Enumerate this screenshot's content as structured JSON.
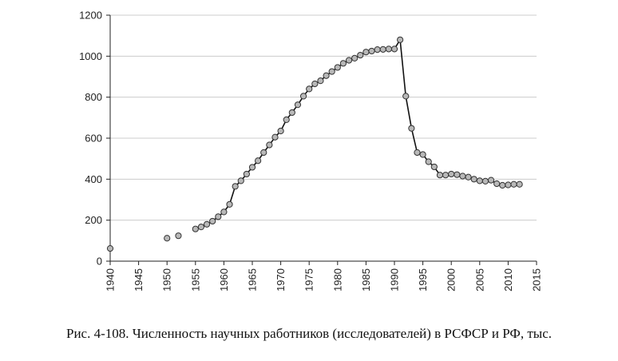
{
  "caption": "Рис. 4-108. Численность научных работников (исследователей) в РСФСР и РФ, тыс.",
  "colors": {
    "line": "#111111",
    "marker_fill": "#b8b8b8",
    "marker_stroke": "#333333",
    "grid": "#cccccc",
    "axis": "#222222"
  },
  "chart_data": {
    "type": "line",
    "title": "",
    "xlabel": "",
    "ylabel": "",
    "xlim": [
      1940,
      2015
    ],
    "ylim": [
      0,
      1200
    ],
    "x_ticks": [
      1940,
      1945,
      1950,
      1955,
      1960,
      1965,
      1970,
      1975,
      1980,
      1985,
      1990,
      1995,
      2000,
      2005,
      2010,
      2015
    ],
    "y_ticks": [
      0,
      200,
      400,
      600,
      800,
      1000,
      1200
    ],
    "grid": "horizontal",
    "series": [
      {
        "x": [
          1940,
          1950,
          1952,
          1955,
          1956,
          1957,
          1958,
          1959,
          1960,
          1961,
          1962,
          1963,
          1964,
          1965,
          1966,
          1967,
          1968,
          1969,
          1970,
          1971,
          1972,
          1973,
          1974,
          1975,
          1976,
          1977,
          1978,
          1979,
          1980,
          1981,
          1982,
          1983,
          1984,
          1985,
          1986,
          1987,
          1988,
          1989,
          1990,
          1991,
          1992,
          1993,
          1994,
          1995,
          1996,
          1997,
          1998,
          1999,
          2000,
          2001,
          2002,
          2003,
          2004,
          2005,
          2006,
          2007,
          2008,
          2009,
          2010,
          2011,
          2012
        ],
        "y": [
          62,
          112,
          124,
          157,
          167,
          180,
          195,
          217,
          240,
          277,
          365,
          392,
          425,
          458,
          490,
          530,
          567,
          605,
          635,
          690,
          725,
          763,
          805,
          840,
          865,
          880,
          905,
          925,
          945,
          965,
          980,
          990,
          1005,
          1020,
          1025,
          1032,
          1033,
          1035,
          1035,
          1080,
          805,
          648,
          530,
          520,
          485,
          460,
          420,
          420,
          425,
          422,
          415,
          410,
          400,
          392,
          390,
          395,
          378,
          370,
          372,
          375,
          375
        ],
        "segments": [
          [
            1955,
            1991
          ],
          [
            1991,
            2012
          ]
        ]
      }
    ]
  }
}
